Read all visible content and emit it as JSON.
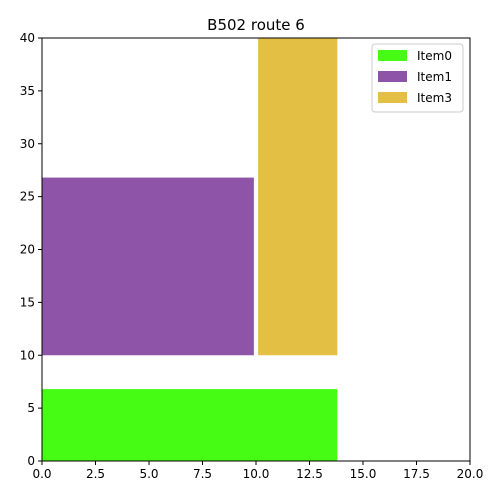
{
  "chart_data": {
    "type": "bar",
    "title": "B502 route 6",
    "xlabel": "",
    "ylabel": "",
    "xlim": [
      0,
      20
    ],
    "ylim": [
      0,
      40
    ],
    "xticks": [
      0,
      2.5,
      5,
      7.5,
      10,
      12.5,
      15,
      17.5,
      20
    ],
    "xtick_labels": [
      "0.0",
      "2.5",
      "5.0",
      "7.5",
      "10.0",
      "12.5",
      "15.0",
      "17.5",
      "20.0"
    ],
    "yticks": [
      0,
      5,
      10,
      15,
      20,
      25,
      30,
      35,
      40
    ],
    "ytick_labels": [
      "0",
      "5",
      "10",
      "15",
      "20",
      "25",
      "30",
      "35",
      "40"
    ],
    "grid": false,
    "legend_position": "top-right",
    "series": [
      {
        "name": "Item0",
        "color": "#47fc14",
        "x0": 0,
        "x1": 13.8,
        "y0": 0,
        "y1": 6.8
      },
      {
        "name": "Item1",
        "color": "#8e54a7",
        "x0": 0,
        "x1": 9.9,
        "y0": 10,
        "y1": 26.8
      },
      {
        "name": "Item3",
        "color": "#e3c044",
        "x0": 10.1,
        "x1": 13.8,
        "y0": 10,
        "y1": 40
      }
    ]
  }
}
